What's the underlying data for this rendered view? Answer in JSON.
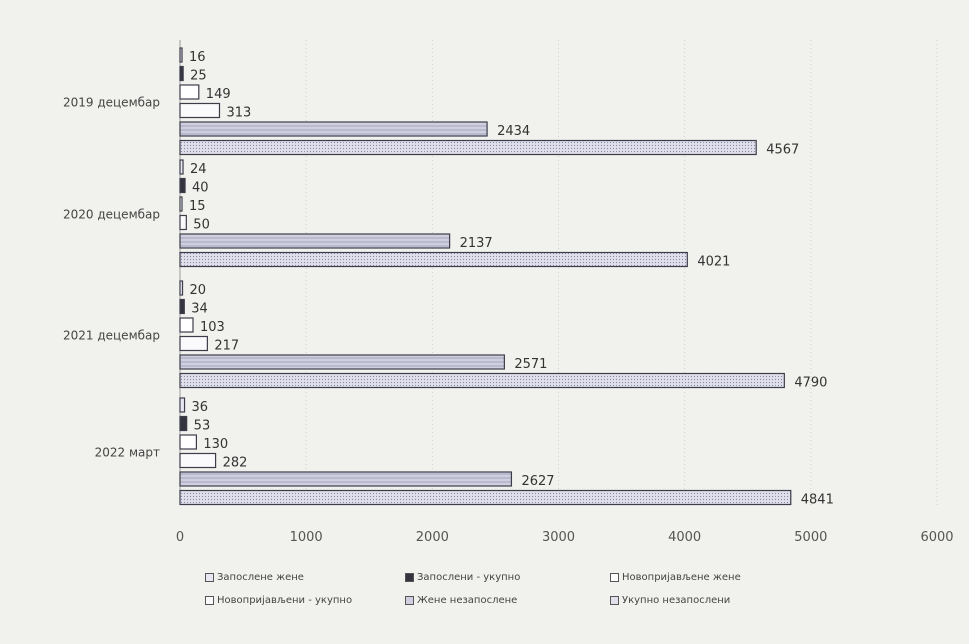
{
  "chart_data": {
    "type": "bar",
    "orientation": "horizontal",
    "categories": [
      "2019 децембар",
      "2020 децембар",
      "2021 децембар",
      "2022 март"
    ],
    "series": [
      {
        "name": "Запослене жене",
        "values": [
          16,
          24,
          20,
          36
        ],
        "color": "#e4e4f0"
      },
      {
        "name": "Запослени - укупно",
        "values": [
          25,
          40,
          34,
          53
        ],
        "color": "#3a3a48"
      },
      {
        "name": "Новопријављене жене",
        "values": [
          149,
          15,
          103,
          130
        ],
        "color": "#ffffff"
      },
      {
        "name": "Новопријављени - укупно",
        "values": [
          313,
          50,
          217,
          282
        ],
        "color": "#f7f7fb"
      },
      {
        "name": "Жене незапослене",
        "values": [
          2434,
          2137,
          2571,
          2627
        ],
        "color": "#c9c9dc"
      },
      {
        "name": "Укупно незапослени",
        "values": [
          4567,
          4021,
          4790,
          4841
        ],
        "color": "#d8d8e8"
      }
    ],
    "xlim": [
      0,
      6000
    ],
    "xticks": [
      "0",
      "1000",
      "2000",
      "3000",
      "4000",
      "5000",
      "6000"
    ],
    "grid": true,
    "legend_position": "bottom"
  }
}
